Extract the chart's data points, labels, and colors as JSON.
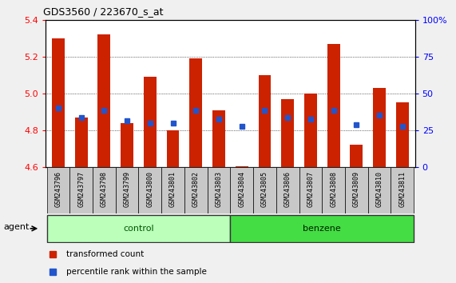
{
  "title": "GDS3560 / 223670_s_at",
  "samples": [
    "GSM243796",
    "GSM243797",
    "GSM243798",
    "GSM243799",
    "GSM243800",
    "GSM243801",
    "GSM243802",
    "GSM243803",
    "GSM243804",
    "GSM243805",
    "GSM243806",
    "GSM243807",
    "GSM243808",
    "GSM243809",
    "GSM243810",
    "GSM243811"
  ],
  "red_values": [
    5.3,
    4.87,
    5.32,
    4.84,
    5.09,
    4.8,
    5.19,
    4.91,
    4.605,
    5.1,
    4.97,
    5.0,
    5.27,
    4.72,
    5.03,
    4.95
  ],
  "blue_values": [
    4.92,
    4.87,
    4.91,
    4.85,
    4.84,
    4.84,
    4.91,
    4.86,
    4.82,
    4.91,
    4.87,
    4.86,
    4.91,
    4.83,
    4.88,
    4.82
  ],
  "ymin": 4.6,
  "ymax": 5.4,
  "yticks": [
    4.6,
    4.8,
    5.0,
    5.2,
    5.4
  ],
  "right_yticks": [
    0,
    25,
    50,
    75,
    100
  ],
  "right_ytick_labels": [
    "0",
    "25",
    "50",
    "75",
    "100%"
  ],
  "bar_color": "#cc2200",
  "blue_color": "#2255cc",
  "label_bg": "#c8c8c8",
  "control_color": "#bbffbb",
  "benzene_color": "#44dd44",
  "fig_bg": "#f0f0f0",
  "plot_bg": "#ffffff",
  "control_label": "control",
  "benzene_label": "benzene",
  "agent_label": "agent",
  "legend_red": "transformed count",
  "legend_blue": "percentile rank within the sample",
  "n_control": 8,
  "bar_width": 0.55
}
